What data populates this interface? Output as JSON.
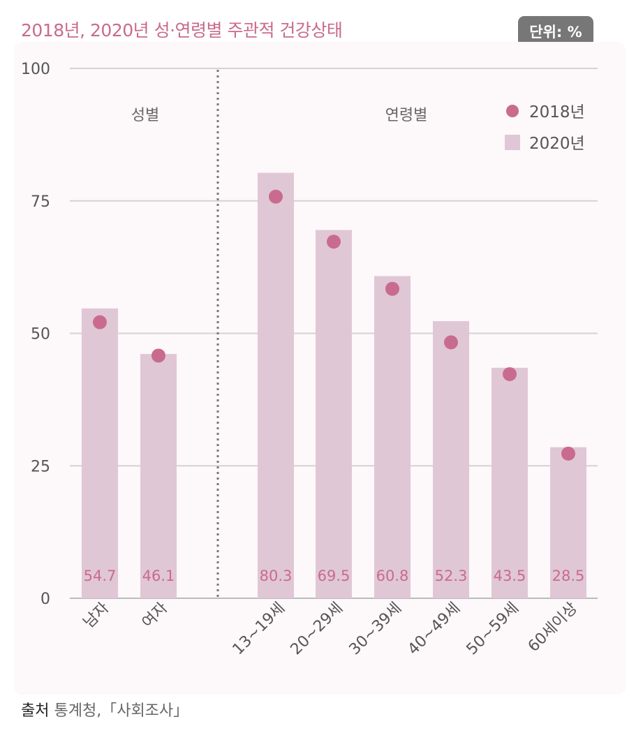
{
  "title": "2018년, 2020년 성·연령별 주관적 건강상태",
  "unit_badge": "단위: %",
  "source": {
    "label": "출처",
    "text": "통계청,「사회조사」"
  },
  "colors": {
    "accent": "#c96b8e",
    "bar_2020": "#e0c7d5",
    "dot_2018": "#c96b8e",
    "grid": "#d6d2d4",
    "axis_text": "#555555"
  },
  "chart_data": {
    "type": "bar",
    "group_labels": [
      "성별",
      "연령별"
    ],
    "categories": [
      "남자",
      "여자",
      "13~19세",
      "20~29세",
      "30~39세",
      "40~49세",
      "50~59세",
      "60세이상"
    ],
    "series": [
      {
        "name": "2020년",
        "type": "bar",
        "values": [
          54.7,
          46.1,
          80.3,
          69.5,
          60.8,
          52.3,
          43.5,
          28.5
        ]
      },
      {
        "name": "2018년",
        "type": "scatter",
        "values": [
          52.1,
          45.8,
          75.8,
          67.3,
          58.4,
          48.3,
          42.3,
          27.3
        ]
      }
    ],
    "ylim": [
      0,
      100
    ],
    "yticks": [
      0,
      25,
      50,
      75,
      100
    ],
    "grid": true,
    "legend_position": "top-right",
    "data_labels": [
      "54.7",
      "46.1",
      "80.3",
      "69.5",
      "60.8",
      "52.3",
      "43.5",
      "28.5"
    ]
  }
}
